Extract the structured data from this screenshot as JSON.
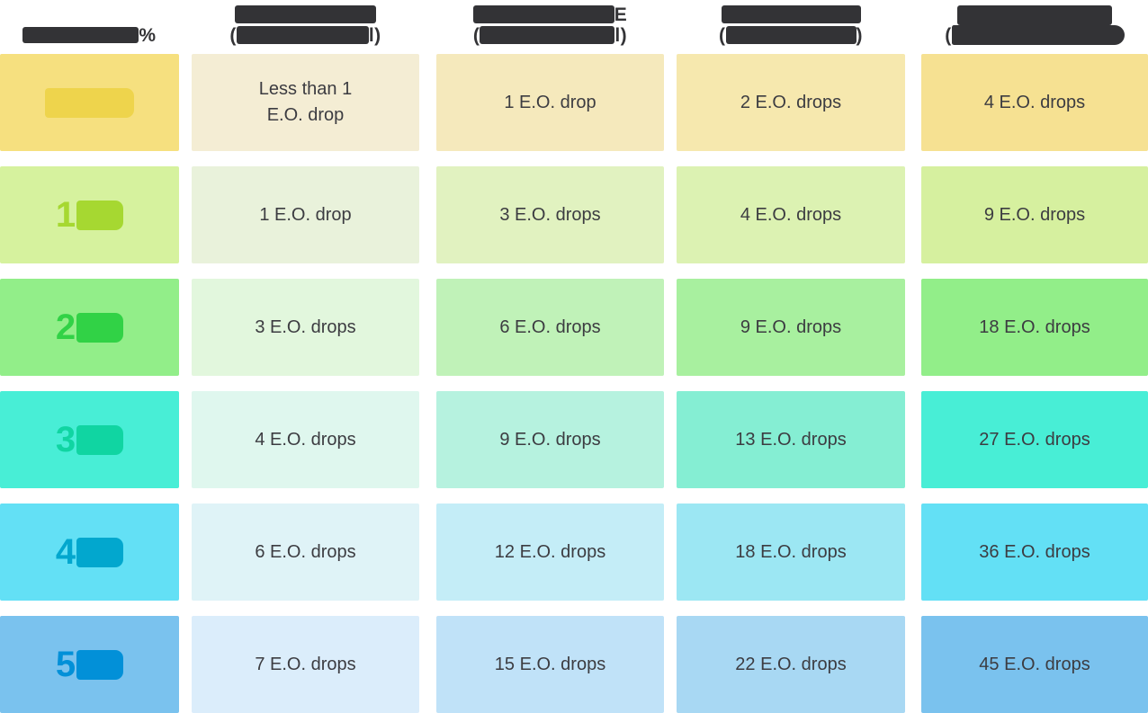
{
  "chart_data": {
    "type": "table",
    "redacted_headers": true,
    "header_fragments": [
      {
        "line1_suffix": "%",
        "line2_prefix": "",
        "line2_suffix": ""
      },
      {
        "line1_suffix": "",
        "line2_prefix": "(",
        "line2_suffix": "l)"
      },
      {
        "line1_suffix": "E",
        "line2_prefix": "(",
        "line2_suffix": "l)"
      },
      {
        "line1_suffix": "",
        "line2_prefix": "(",
        "line2_suffix": ")"
      },
      {
        "line1_suffix": "",
        "line2_prefix": "(",
        "line2_suffix": ""
      }
    ],
    "rows": [
      {
        "label_digit": "",
        "cells": [
          "Less than 1\nE.O. drop",
          "1 E.O. drop",
          "2 E.O. drops",
          "4 E.O. drops"
        ]
      },
      {
        "label_digit": "1",
        "cells": [
          "1 E.O. drop",
          "3 E.O. drops",
          "4 E.O. drops",
          "9 E.O. drops"
        ]
      },
      {
        "label_digit": "2",
        "cells": [
          "3 E.O. drops",
          "6 E.O. drops",
          "9 E.O. drops",
          "18 E.O. drops"
        ]
      },
      {
        "label_digit": "3",
        "cells": [
          "4 E.O. drops",
          "9 E.O. drops",
          "13 E.O. drops",
          "27 E.O. drops"
        ]
      },
      {
        "label_digit": "4",
        "cells": [
          "6 E.O. drops",
          "12 E.O. drops",
          "18 E.O. drops",
          "36 E.O. drops"
        ]
      },
      {
        "label_digit": "5",
        "cells": [
          "7 E.O. drops",
          "15 E.O. drops",
          "22 E.O. drops",
          "45 E.O. drops"
        ]
      }
    ],
    "colors": {
      "header_bar": "#333336",
      "cell_text": "#3c3c41",
      "row_palettes": [
        {
          "label_bg": "#f6e07f",
          "label_bar": "#eed44c",
          "c2": "#f4edd4",
          "c3": "#f5e9bc",
          "c4": "#f6e8ae",
          "c5": "#f6e192"
        },
        {
          "label_bg": "#d6f29e",
          "label_bar": "#a6d831",
          "c2": "#e9f2db",
          "c3": "#e1f2c0",
          "c4": "#dcf2b2",
          "c5": "#d6f09f"
        },
        {
          "label_bg": "#92ee89",
          "label_bar": "#31d246",
          "c2": "#e2f7dd",
          "c3": "#c0f2b8",
          "c4": "#a8f09f",
          "c5": "#92ee89"
        },
        {
          "label_bg": "#48eed6",
          "label_bar": "#10d5a2",
          "c2": "#dff7ee",
          "c3": "#b6f2df",
          "c4": "#85eed3",
          "c5": "#48eed6"
        },
        {
          "label_bg": "#63e0f5",
          "label_bar": "#02a7ce",
          "c2": "#dff3f7",
          "c3": "#c4edf7",
          "c4": "#9ce7f3",
          "c5": "#63e0f5"
        },
        {
          "label_bg": "#7ac2ee",
          "label_bar": "#0290d8",
          "c2": "#dbedfb",
          "c3": "#c0e2f8",
          "c4": "#a8d8f3",
          "c5": "#7ac2ee"
        }
      ]
    }
  }
}
